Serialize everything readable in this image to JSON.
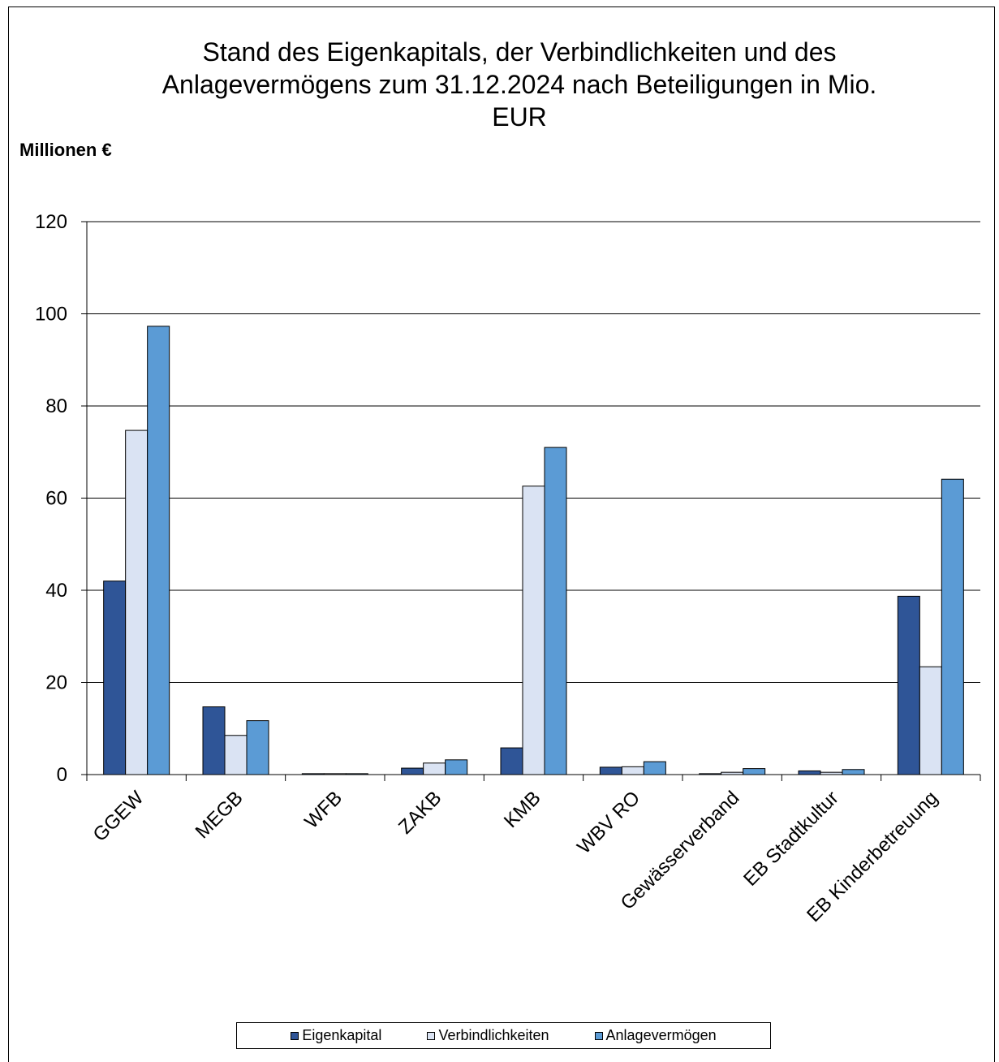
{
  "chart_data": {
    "type": "bar",
    "title": "Stand des Eigenkapitals, der Verbindlichkeiten und des Anlagevermögens zum 31.12.2024 nach Beteiligungen in Mio. EUR",
    "title_lines": [
      "Stand des Eigenkapitals, der Verbindlichkeiten und des",
      "Anlagevermögens zum 31.12.2024 nach Beteiligungen in Mio.",
      "EUR"
    ],
    "ylabel": "Millionen €",
    "xlabel": "",
    "ylim": [
      0,
      120
    ],
    "yticks": [
      0,
      20,
      40,
      60,
      80,
      100,
      120
    ],
    "grid": true,
    "legend_position": "bottom",
    "categories": [
      "GGEW",
      "MEGB",
      "WFB",
      "ZAKB",
      "KMB",
      "WBV RO",
      "Gewässerverband",
      "EB Stadtkultur",
      "EB Kinderbetreuung"
    ],
    "series": [
      {
        "name": "Eigenkapital",
        "color": "#2F5597",
        "values": [
          42.0,
          14.7,
          0.2,
          1.4,
          5.8,
          1.6,
          0.2,
          0.8,
          38.7
        ]
      },
      {
        "name": "Verbindlichkeiten",
        "color": "#DAE3F3",
        "values": [
          74.7,
          8.5,
          0.2,
          2.5,
          62.6,
          1.7,
          0.5,
          0.5,
          23.4
        ]
      },
      {
        "name": "Anlagevermögen",
        "color": "#5B9BD5",
        "values": [
          97.3,
          11.7,
          0.2,
          3.2,
          71.0,
          2.8,
          1.3,
          1.1,
          64.1
        ]
      }
    ]
  }
}
